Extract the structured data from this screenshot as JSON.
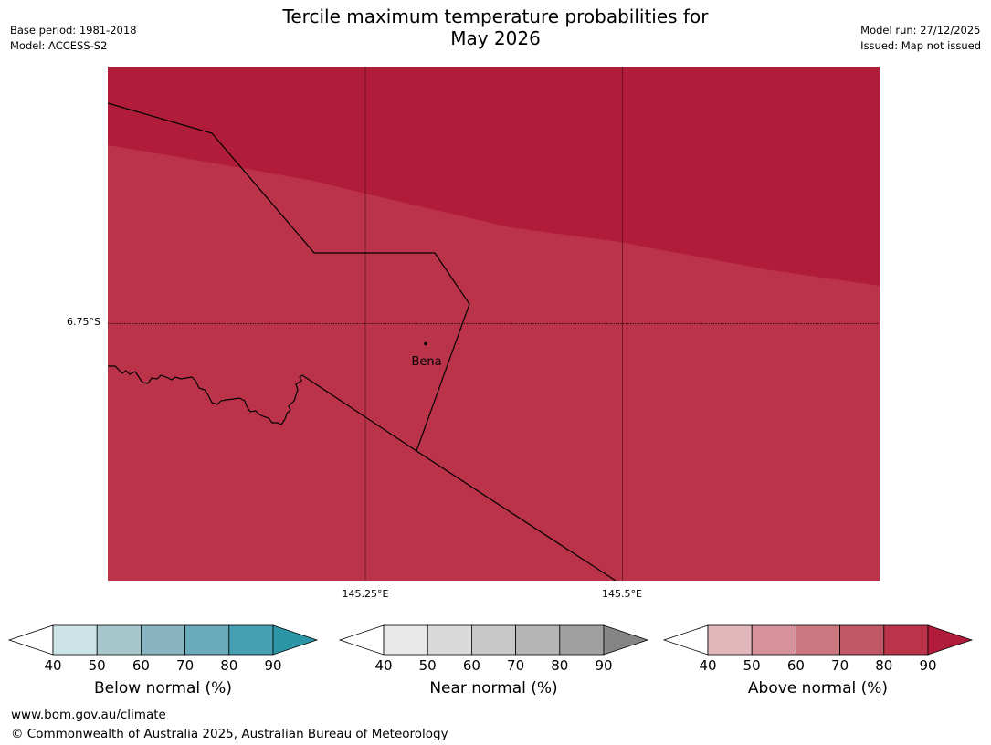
{
  "header": {
    "title_line1": "Tercile maximum temperature probabilities for",
    "title_line2": "May 2026",
    "base_period": "Base period: 1981-2018",
    "model": "Model: ACCESS-S2",
    "model_run": "Model run: 27/12/2025",
    "issued": "Issued: Map not issued"
  },
  "map": {
    "place_label": "Bena",
    "lat_label": "6.75°S",
    "lon_labels": [
      "145.25°E",
      "145.5°E"
    ],
    "fill_colors": {
      "above_80_90": "#bb3349",
      "above_90_plus": "#b01c39"
    }
  },
  "legends": [
    {
      "name": "below",
      "title": "Below normal (%)",
      "ticks": [
        "40",
        "50",
        "60",
        "70",
        "80",
        "90"
      ],
      "colors": [
        "#ffffff",
        "#cce3e8",
        "#a8c7cd",
        "#89b4c1",
        "#6aabbb",
        "#44a0b2",
        "#2d95a8"
      ]
    },
    {
      "name": "near",
      "title": "Near normal (%)",
      "ticks": [
        "40",
        "50",
        "60",
        "70",
        "80",
        "90"
      ],
      "colors": [
        "#ffffff",
        "#e8e8e8",
        "#d9d9d9",
        "#c8c8c8",
        "#b5b5b5",
        "#a0a0a0",
        "#858585"
      ]
    },
    {
      "name": "above",
      "title": "Above normal (%)",
      "ticks": [
        "40",
        "50",
        "60",
        "70",
        "80",
        "90"
      ],
      "colors": [
        "#ffffff",
        "#e2b7bc",
        "#d7939c",
        "#cc7780",
        "#c15866",
        "#bb3349",
        "#b01c39"
      ]
    }
  ],
  "footer": {
    "url": "www.bom.gov.au/climate",
    "copyright": "© Commonwealth of Australia 2025, Australian Bureau of Meteorology"
  }
}
